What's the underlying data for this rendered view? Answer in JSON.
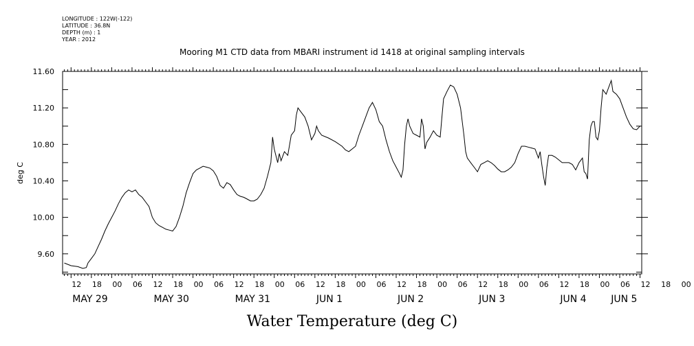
{
  "meta": {
    "longitude": "LONGITUDE : 122W(-122)",
    "latitude": "LATITUDE : 36.8N",
    "depth": "DEPTH (m) : 1",
    "year": "YEAR : 2012"
  },
  "chart_data": {
    "type": "line",
    "title": "Mooring M1 CTD data from MBARI instrument id 1418 at original sampling intervals",
    "xlabel": "Water Temperature (deg C)",
    "ylabel": "deg C",
    "ylim": [
      9.38,
      11.6
    ],
    "y_ticks": [
      "9.60",
      "10.00",
      "10.40",
      "10.80",
      "11.20",
      "11.60"
    ],
    "x_range_hours": [
      0,
      168
    ],
    "x_hour_ticks": [
      "12",
      "18",
      "00",
      "06",
      "12",
      "18",
      "00",
      "06",
      "12",
      "18",
      "00",
      "06",
      "12",
      "18",
      "00",
      "06",
      "12",
      "18",
      "00",
      "06",
      "12",
      "18",
      "00",
      "06",
      "12",
      "18",
      "00",
      "06",
      "12",
      "18",
      "00",
      "06",
      "12",
      "18",
      "00",
      "06"
    ],
    "x_day_labels": [
      {
        "label": "MAY 29",
        "hour": 0
      },
      {
        "label": "MAY 30",
        "hour": 24
      },
      {
        "label": "MAY 31",
        "hour": 48
      },
      {
        "label": "JUN 1",
        "hour": 72
      },
      {
        "label": "JUN 2",
        "hour": 96
      },
      {
        "label": "JUN 3",
        "hour": 120
      },
      {
        "label": "JUN 4",
        "hour": 144
      },
      {
        "label": "JUN 5",
        "hour": 159
      }
    ],
    "series": [
      {
        "points": [
          [
            -2,
            9.5
          ],
          [
            0,
            9.47
          ],
          [
            2,
            9.46
          ],
          [
            3.5,
            9.44
          ],
          [
            4.5,
            9.45
          ],
          [
            5,
            9.5
          ],
          [
            6,
            9.55
          ],
          [
            7,
            9.6
          ],
          [
            8,
            9.68
          ],
          [
            9,
            9.76
          ],
          [
            10,
            9.85
          ],
          [
            11,
            9.93
          ],
          [
            12,
            10.0
          ],
          [
            13,
            10.07
          ],
          [
            14,
            10.15
          ],
          [
            15,
            10.22
          ],
          [
            16,
            10.27
          ],
          [
            17,
            10.3
          ],
          [
            18,
            10.28
          ],
          [
            19,
            10.3
          ],
          [
            20,
            10.25
          ],
          [
            21,
            10.22
          ],
          [
            22,
            10.17
          ],
          [
            23,
            10.12
          ],
          [
            24,
            10.0
          ],
          [
            25,
            9.94
          ],
          [
            26,
            9.91
          ],
          [
            27,
            9.89
          ],
          [
            28,
            9.87
          ],
          [
            29,
            9.86
          ],
          [
            30,
            9.85
          ],
          [
            31,
            9.9
          ],
          [
            32,
            10.0
          ],
          [
            33,
            10.12
          ],
          [
            34,
            10.27
          ],
          [
            35,
            10.38
          ],
          [
            36,
            10.48
          ],
          [
            37,
            10.52
          ],
          [
            38,
            10.54
          ],
          [
            39,
            10.56
          ],
          [
            40,
            10.55
          ],
          [
            41,
            10.54
          ],
          [
            42,
            10.51
          ],
          [
            43,
            10.45
          ],
          [
            44,
            10.35
          ],
          [
            45,
            10.32
          ],
          [
            46,
            10.38
          ],
          [
            47,
            10.36
          ],
          [
            48,
            10.3
          ],
          [
            49,
            10.25
          ],
          [
            50,
            10.23
          ],
          [
            51,
            10.22
          ],
          [
            52,
            10.2
          ],
          [
            53,
            10.18
          ],
          [
            54,
            10.18
          ],
          [
            55,
            10.2
          ],
          [
            56,
            10.25
          ],
          [
            57,
            10.32
          ],
          [
            58,
            10.45
          ],
          [
            59,
            10.6
          ],
          [
            59.5,
            10.88
          ],
          [
            60,
            10.75
          ],
          [
            61,
            10.6
          ],
          [
            61.5,
            10.7
          ],
          [
            62,
            10.62
          ],
          [
            63,
            10.72
          ],
          [
            64,
            10.68
          ],
          [
            65,
            10.9
          ],
          [
            66,
            10.95
          ],
          [
            66.5,
            11.12
          ],
          [
            67,
            11.2
          ],
          [
            68,
            11.15
          ],
          [
            69,
            11.1
          ],
          [
            70,
            11.0
          ],
          [
            71,
            10.85
          ],
          [
            72,
            10.92
          ],
          [
            72.5,
            11.0
          ],
          [
            73,
            10.95
          ],
          [
            74,
            10.9
          ],
          [
            76,
            10.87
          ],
          [
            78,
            10.83
          ],
          [
            80,
            10.78
          ],
          [
            81,
            10.74
          ],
          [
            82,
            10.72
          ],
          [
            83,
            10.75
          ],
          [
            84,
            10.78
          ],
          [
            85,
            10.9
          ],
          [
            86,
            11.0
          ],
          [
            87,
            11.1
          ],
          [
            88,
            11.2
          ],
          [
            89,
            11.26
          ],
          [
            90,
            11.18
          ],
          [
            91,
            11.05
          ],
          [
            92,
            11.0
          ],
          [
            93,
            10.85
          ],
          [
            94,
            10.72
          ],
          [
            95,
            10.62
          ],
          [
            96,
            10.55
          ],
          [
            97,
            10.48
          ],
          [
            97.5,
            10.44
          ],
          [
            98,
            10.52
          ],
          [
            98.5,
            10.8
          ],
          [
            99,
            11.0
          ],
          [
            99.5,
            11.08
          ],
          [
            100,
            11.0
          ],
          [
            101,
            10.92
          ],
          [
            102,
            10.9
          ],
          [
            103,
            10.88
          ],
          [
            103.5,
            11.08
          ],
          [
            104,
            11.0
          ],
          [
            104.5,
            10.75
          ],
          [
            105,
            10.82
          ],
          [
            106,
            10.88
          ],
          [
            107,
            10.95
          ],
          [
            108,
            10.9
          ],
          [
            109,
            10.88
          ],
          [
            109.5,
            11.1
          ],
          [
            110,
            11.3
          ],
          [
            111,
            11.38
          ],
          [
            112,
            11.45
          ],
          [
            113,
            11.43
          ],
          [
            114,
            11.35
          ],
          [
            115,
            11.2
          ],
          [
            116,
            10.9
          ],
          [
            116.5,
            10.72
          ],
          [
            117,
            10.65
          ],
          [
            118,
            10.6
          ],
          [
            119,
            10.55
          ],
          [
            120,
            10.5
          ],
          [
            121,
            10.58
          ],
          [
            122,
            10.6
          ],
          [
            123,
            10.62
          ],
          [
            124,
            10.6
          ],
          [
            125,
            10.57
          ],
          [
            126,
            10.53
          ],
          [
            127,
            10.5
          ],
          [
            128,
            10.5
          ],
          [
            129,
            10.52
          ],
          [
            130,
            10.55
          ],
          [
            131,
            10.6
          ],
          [
            132,
            10.7
          ],
          [
            133,
            10.78
          ],
          [
            134,
            10.78
          ],
          [
            135,
            10.77
          ],
          [
            136,
            10.76
          ],
          [
            137,
            10.75
          ],
          [
            138,
            10.65
          ],
          [
            138.5,
            10.72
          ],
          [
            139,
            10.58
          ],
          [
            139.5,
            10.45
          ],
          [
            140,
            10.35
          ],
          [
            140.5,
            10.55
          ],
          [
            141,
            10.68
          ],
          [
            142,
            10.68
          ],
          [
            143,
            10.66
          ],
          [
            144,
            10.63
          ],
          [
            145,
            10.6
          ],
          [
            146,
            10.6
          ],
          [
            147,
            10.6
          ],
          [
            148,
            10.58
          ],
          [
            149,
            10.52
          ],
          [
            150,
            10.6
          ],
          [
            151,
            10.65
          ],
          [
            151.5,
            10.5
          ],
          [
            152,
            10.48
          ],
          [
            152.5,
            10.42
          ],
          [
            153,
            10.85
          ],
          [
            153.5,
            11.0
          ],
          [
            154,
            11.05
          ],
          [
            154.5,
            11.05
          ],
          [
            155,
            10.88
          ],
          [
            155.5,
            10.85
          ],
          [
            156,
            10.95
          ],
          [
            156.5,
            11.2
          ],
          [
            157,
            11.4
          ],
          [
            158,
            11.35
          ],
          [
            159,
            11.45
          ],
          [
            159.5,
            11.5
          ],
          [
            160,
            11.38
          ],
          [
            161,
            11.35
          ],
          [
            162,
            11.3
          ],
          [
            163,
            11.2
          ],
          [
            164,
            11.1
          ],
          [
            165,
            11.02
          ],
          [
            166,
            10.97
          ],
          [
            167,
            10.96
          ],
          [
            168,
            11.0
          ]
        ]
      }
    ]
  }
}
